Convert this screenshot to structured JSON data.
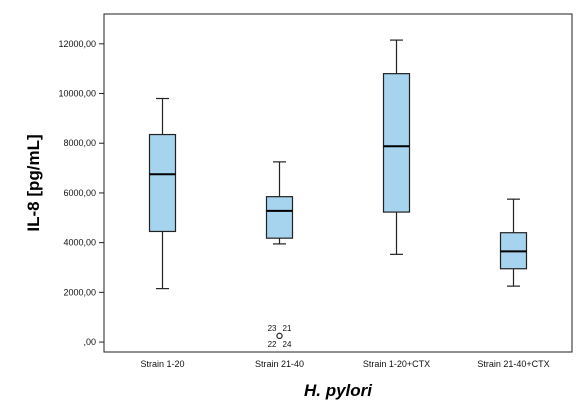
{
  "chart_data": {
    "type": "box",
    "title": "",
    "xlabel": "H. pylori",
    "ylabel": "IL-8 [pg/mL]",
    "ylim": [
      -400,
      13200
    ],
    "yticks": [
      {
        "value": 0,
        "label": ",00"
      },
      {
        "value": 2000,
        "label": "2000,00"
      },
      {
        "value": 4000,
        "label": "4000,00"
      },
      {
        "value": 6000,
        "label": "6000,00"
      },
      {
        "value": 8000,
        "label": "8000,00"
      },
      {
        "value": 10000,
        "label": "10000,00"
      },
      {
        "value": 12000,
        "label": "12000,00"
      }
    ],
    "grid": false,
    "box_color": "#a6d3ee",
    "line_color": "#222222",
    "categories": [
      "Strain 1-20",
      "Strain 21-40",
      "Strain 1-20+CTX",
      "Strain 21-40+CTX"
    ],
    "boxes": [
      {
        "category": "Strain 1-20",
        "whisker_low": 2150,
        "q1": 4450,
        "median": 6750,
        "q3": 8350,
        "whisker_high": 9800,
        "outliers": []
      },
      {
        "category": "Strain 21-40",
        "whisker_low": 3950,
        "q1": 4180,
        "median": 5280,
        "q3": 5850,
        "whisker_high": 7250,
        "outliers": [
          {
            "value": 250,
            "labels": [
              "23",
              "21",
              "22",
              "24"
            ]
          }
        ]
      },
      {
        "category": "Strain 1-20+CTX",
        "whisker_low": 3530,
        "q1": 5230,
        "median": 7880,
        "q3": 10800,
        "whisker_high": 12150,
        "outliers": []
      },
      {
        "category": "Strain 21-40+CTX",
        "whisker_low": 2250,
        "q1": 2950,
        "median": 3650,
        "q3": 4400,
        "whisker_high": 5750,
        "outliers": []
      }
    ]
  }
}
